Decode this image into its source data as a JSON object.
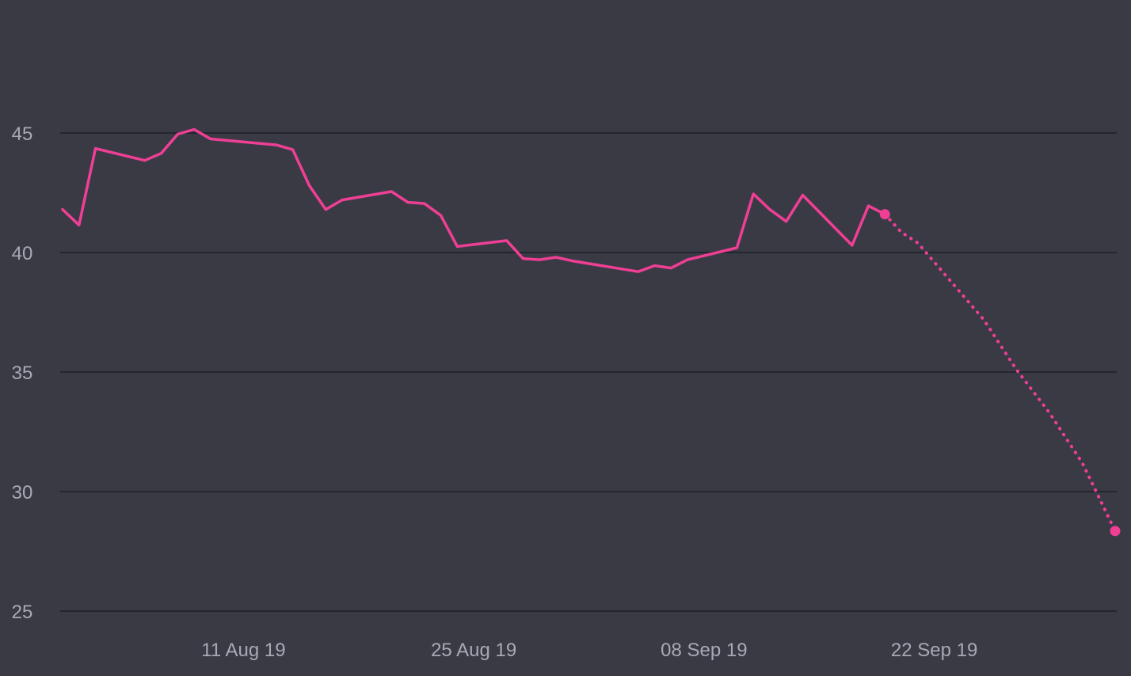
{
  "chart_data": {
    "type": "line",
    "title": "",
    "xlabel": "",
    "ylabel": "",
    "ylim": [
      25,
      50
    ],
    "xlim": [
      "2019-07-31",
      "2019-10-03"
    ],
    "grid": true,
    "legend": "none",
    "colors": {
      "background": "#3a3a45",
      "gridline": "#25252d",
      "tick_label": "#a9a9b4",
      "series": "#ef3f95"
    },
    "y_ticks": [
      {
        "value": 25,
        "label": "25"
      },
      {
        "value": 30,
        "label": "30"
      },
      {
        "value": 35,
        "label": "35"
      },
      {
        "value": 40,
        "label": "40"
      },
      {
        "value": 45,
        "label": "45"
      }
    ],
    "x_ticks": [
      {
        "value": "2019-08-11",
        "label": "11 Aug 19"
      },
      {
        "value": "2019-08-25",
        "label": "25 Aug 19"
      },
      {
        "value": "2019-09-08",
        "label": "08 Sep 19"
      },
      {
        "value": "2019-09-22",
        "label": "22 Sep 19"
      }
    ],
    "series": [
      {
        "style": "solid",
        "points": [
          {
            "x": "2019-07-31",
            "y": 41.8
          },
          {
            "x": "2019-08-01",
            "y": 41.15
          },
          {
            "x": "2019-08-02",
            "y": 44.35
          },
          {
            "x": "2019-08-05",
            "y": 43.85
          },
          {
            "x": "2019-08-06",
            "y": 44.15
          },
          {
            "x": "2019-08-07",
            "y": 44.95
          },
          {
            "x": "2019-08-08",
            "y": 45.15
          },
          {
            "x": "2019-08-09",
            "y": 44.75
          },
          {
            "x": "2019-08-13",
            "y": 44.5
          },
          {
            "x": "2019-08-14",
            "y": 44.3
          },
          {
            "x": "2019-08-15",
            "y": 42.8
          },
          {
            "x": "2019-08-16",
            "y": 41.8
          },
          {
            "x": "2019-08-17",
            "y": 42.2
          },
          {
            "x": "2019-08-20",
            "y": 42.55
          },
          {
            "x": "2019-08-21",
            "y": 42.1
          },
          {
            "x": "2019-08-22",
            "y": 42.05
          },
          {
            "x": "2019-08-23",
            "y": 41.55
          },
          {
            "x": "2019-08-24",
            "y": 40.25
          },
          {
            "x": "2019-08-27",
            "y": 40.5
          },
          {
            "x": "2019-08-28",
            "y": 39.75
          },
          {
            "x": "2019-08-29",
            "y": 39.7
          },
          {
            "x": "2019-08-30",
            "y": 39.8
          },
          {
            "x": "2019-08-31",
            "y": 39.65
          },
          {
            "x": "2019-09-04",
            "y": 39.2
          },
          {
            "x": "2019-09-05",
            "y": 39.45
          },
          {
            "x": "2019-09-06",
            "y": 39.35
          },
          {
            "x": "2019-09-07",
            "y": 39.7
          },
          {
            "x": "2019-09-10",
            "y": 40.2
          },
          {
            "x": "2019-09-11",
            "y": 42.45
          },
          {
            "x": "2019-09-12",
            "y": 41.8
          },
          {
            "x": "2019-09-13",
            "y": 41.3
          },
          {
            "x": "2019-09-14",
            "y": 42.4
          },
          {
            "x": "2019-09-17",
            "y": 40.3
          },
          {
            "x": "2019-09-18",
            "y": 41.95
          },
          {
            "x": "2019-09-19",
            "y": 41.6
          }
        ]
      },
      {
        "style": "dotted",
        "points": [
          {
            "x": "2019-09-19",
            "y": 41.6
          },
          {
            "x": "2019-09-20",
            "y": 40.85
          },
          {
            "x": "2019-09-21",
            "y": 40.4
          },
          {
            "x": "2019-09-23",
            "y": 38.8
          },
          {
            "x": "2019-09-25",
            "y": 37.2
          },
          {
            "x": "2019-09-27",
            "y": 35.1
          },
          {
            "x": "2019-09-29",
            "y": 33.3
          },
          {
            "x": "2019-10-01",
            "y": 31.2
          },
          {
            "x": "2019-10-03",
            "y": 28.35
          }
        ]
      }
    ],
    "markers": [
      {
        "x": "2019-09-19",
        "y": 41.6
      },
      {
        "x": "2019-10-03",
        "y": 28.35
      }
    ]
  }
}
